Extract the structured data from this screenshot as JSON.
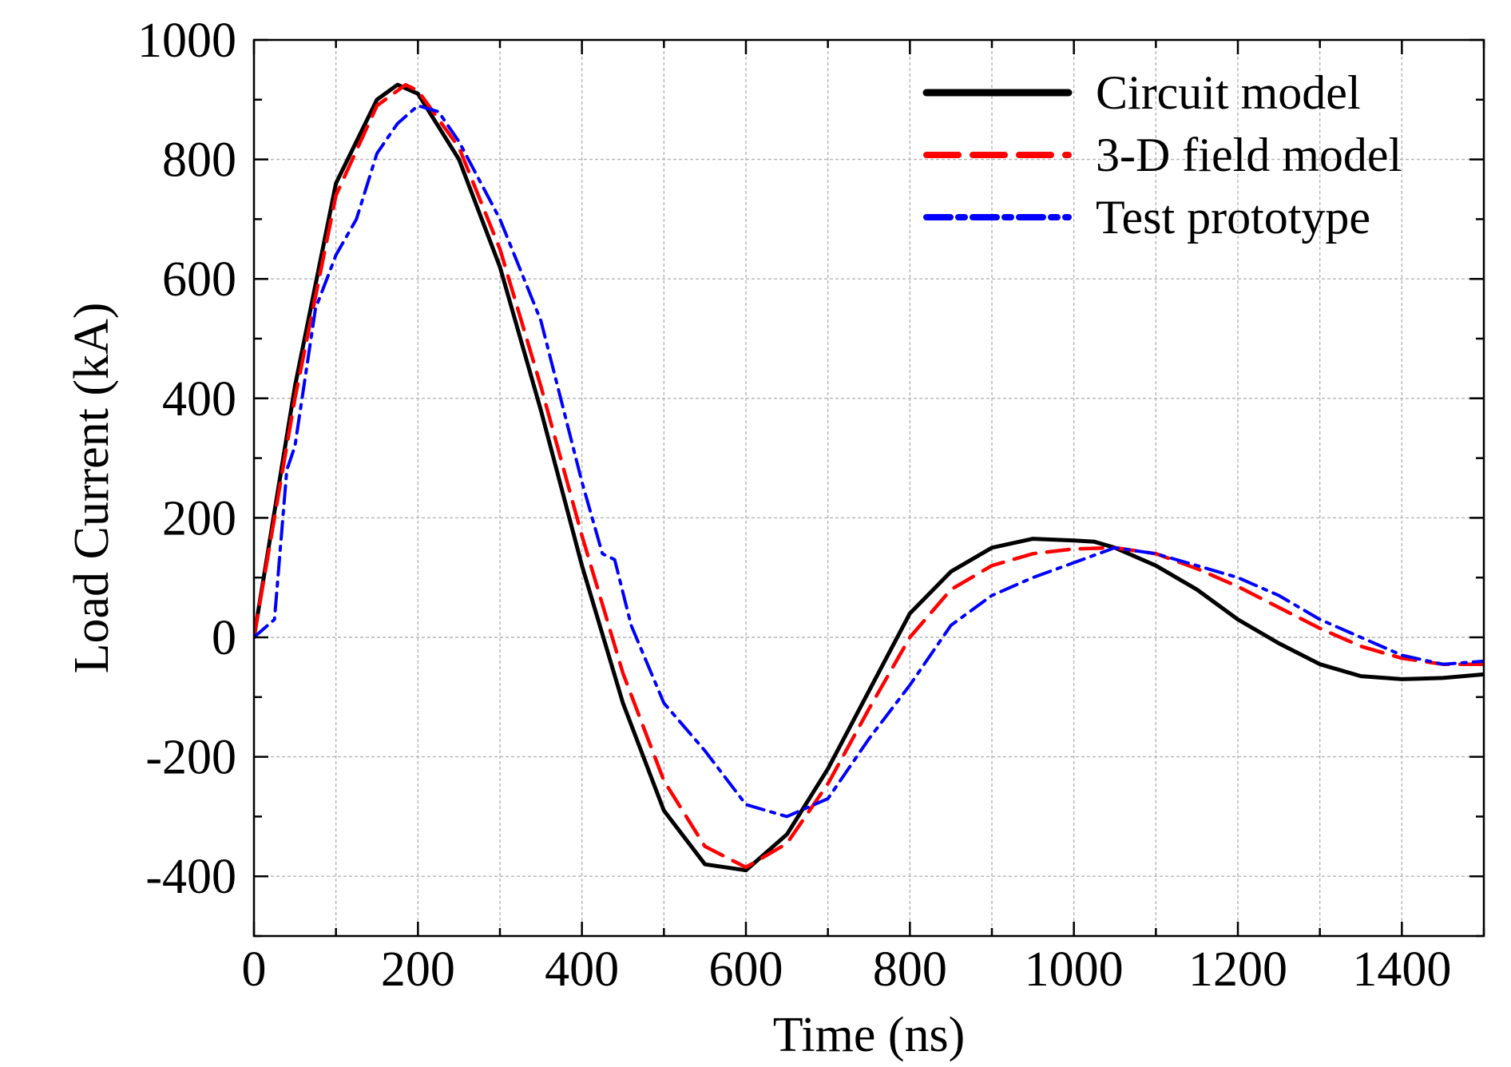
{
  "chart_data": {
    "type": "line",
    "title": "",
    "xlabel": "Time (ns)",
    "ylabel": "Load Current (kA)",
    "xlim": [
      0,
      1500
    ],
    "ylim": [
      -500,
      1000
    ],
    "xticks": [
      0,
      200,
      400,
      600,
      800,
      1000,
      1200,
      1400
    ],
    "yticks": [
      -400,
      -200,
      0,
      200,
      400,
      600,
      800,
      1000
    ],
    "xtick_labels": [
      "0",
      "200",
      "400",
      "600",
      "800",
      "1000",
      "1200",
      "1400"
    ],
    "ytick_labels": [
      "-400",
      "-200",
      "0",
      "200",
      "400",
      "600",
      "800",
      "1000"
    ],
    "grid": true,
    "legend_position": "top-right",
    "series": [
      {
        "name": "Circuit model",
        "color": "#000000",
        "style": "solid",
        "x": [
          0,
          50,
          100,
          150,
          175,
          200,
          250,
          300,
          350,
          400,
          450,
          500,
          550,
          600,
          650,
          700,
          750,
          800,
          850,
          900,
          950,
          1000,
          1025,
          1050,
          1100,
          1150,
          1200,
          1250,
          1300,
          1350,
          1400,
          1450,
          1500
        ],
        "values": [
          0,
          420,
          760,
          900,
          925,
          910,
          800,
          620,
          380,
          120,
          -110,
          -290,
          -380,
          -390,
          -330,
          -220,
          -90,
          40,
          110,
          150,
          165,
          162,
          160,
          150,
          120,
          80,
          30,
          -10,
          -45,
          -65,
          -70,
          -68,
          -62
        ]
      },
      {
        "name": "3-D field model",
        "color": "#ff0000",
        "style": "dashed",
        "x": [
          0,
          50,
          100,
          150,
          185,
          200,
          250,
          300,
          350,
          400,
          450,
          500,
          550,
          600,
          650,
          700,
          750,
          800,
          850,
          900,
          950,
          1000,
          1050,
          1100,
          1150,
          1200,
          1250,
          1300,
          1350,
          1400,
          1450,
          1500
        ],
        "values": [
          0,
          400,
          740,
          890,
          925,
          915,
          820,
          650,
          420,
          170,
          -60,
          -240,
          -350,
          -385,
          -345,
          -245,
          -120,
          0,
          80,
          120,
          140,
          148,
          150,
          140,
          115,
          85,
          50,
          15,
          -15,
          -35,
          -45,
          -45
        ]
      },
      {
        "name": "Test prototype",
        "color": "#0000ff",
        "style": "dashdot",
        "x": [
          0,
          25,
          40,
          50,
          75,
          100,
          125,
          150,
          175,
          200,
          225,
          250,
          300,
          350,
          400,
          425,
          440,
          460,
          500,
          550,
          600,
          650,
          700,
          750,
          800,
          850,
          900,
          950,
          1000,
          1050,
          1100,
          1150,
          1200,
          1250,
          1300,
          1350,
          1400,
          1450,
          1500
        ],
        "values": [
          0,
          30,
          280,
          320,
          550,
          640,
          700,
          810,
          860,
          890,
          880,
          830,
          700,
          530,
          260,
          140,
          130,
          20,
          -110,
          -190,
          -280,
          -300,
          -270,
          -170,
          -80,
          20,
          70,
          100,
          125,
          150,
          140,
          120,
          100,
          70,
          30,
          0,
          -30,
          -45,
          -40
        ]
      }
    ]
  }
}
